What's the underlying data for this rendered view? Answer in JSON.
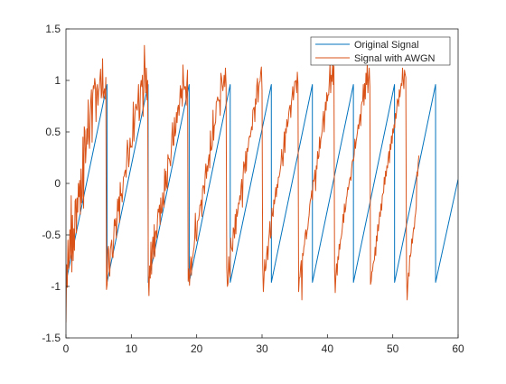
{
  "chart_data": {
    "type": "line",
    "title": "",
    "xlabel": "",
    "ylabel": "",
    "xlim": [
      0,
      60
    ],
    "ylim": [
      -1.5,
      1.5
    ],
    "x_ticks": [
      0,
      10,
      20,
      30,
      40,
      50,
      60
    ],
    "y_ticks": [
      -1.5,
      -1,
      -0.5,
      0,
      0.5,
      1,
      1.5
    ],
    "x_tick_labels": [
      "0",
      "10",
      "20",
      "30",
      "40",
      "50",
      "60"
    ],
    "y_tick_labels": [
      "-1.5",
      "-1",
      "-0.5",
      "0",
      "0.5",
      "1",
      "1.5"
    ],
    "grid": false,
    "legend_position": "top-right",
    "series": [
      {
        "name": "Original Signal",
        "color": "#0072BD",
        "x": [
          0,
          6.28,
          6.29,
          12.57,
          12.58,
          18.85,
          18.86,
          25.13,
          25.14,
          31.42,
          31.43,
          37.7,
          37.71,
          43.98,
          43.99,
          50.27,
          50.28,
          56.55,
          56.56,
          60
        ],
        "values": [
          -0.96,
          0.96,
          -0.96,
          0.96,
          -0.96,
          0.96,
          -0.96,
          0.96,
          -0.96,
          0.96,
          -0.96,
          0.96,
          -0.96,
          0.96,
          -0.96,
          0.96,
          -0.96,
          0.96,
          -0.96,
          0.04
        ]
      },
      {
        "name": "Signal with AWGN",
        "color": "#D95319",
        "x_start": 0,
        "x_step": 0.1,
        "values": [
          -1.35,
          -0.79,
          -1.01,
          -0.55,
          -0.83,
          -0.74,
          -0.45,
          -0.73,
          -0.12,
          -0.86,
          -0.31,
          -0.75,
          -0.44,
          -0.65,
          -0.17,
          -0.15,
          -0.48,
          -0.14,
          -0.28,
          0.0,
          -0.13,
          0.03,
          -0.3,
          0.14,
          -0.19,
          -0.12,
          0.45,
          -0.24,
          0.55,
          0.51,
          0.2,
          0.34,
          0.53,
          0.38,
          0.81,
          0.45,
          0.34,
          0.66,
          0.81,
          0.91,
          0.4,
          0.87,
          0.95,
          0.92,
          1.02,
          0.96,
          0.6,
          0.92,
          0.96,
          0.76,
          0.89,
          0.93,
          1.02,
          1.11,
          0.83,
          0.88,
          1.21,
          0.83,
          0.88,
          0.92,
          0.82,
          1.03,
          -1.03,
          -0.98,
          -0.65,
          -0.61,
          -0.81,
          -0.9,
          -0.64,
          -0.59,
          -0.55,
          -0.71,
          -0.72,
          -0.54,
          -0.35,
          -0.41,
          -0.34,
          -0.53,
          -0.37,
          -0.15,
          -0.27,
          -0.13,
          -0.38,
          0.01,
          -0.12,
          -0.1,
          -0.18,
          -0.07,
          0.06,
          0.07,
          0.11,
          0.13,
          0.06,
          0.24,
          0.42,
          0.33,
          0.16,
          0.24,
          0.44,
          0.35,
          0.36,
          0.35,
          0.45,
          0.79,
          0.41,
          0.59,
          0.72,
          0.77,
          0.73,
          0.71,
          0.8,
          0.96,
          0.61,
          0.66,
          0.94,
          1.0,
          0.94,
          1.05,
          0.65,
          0.91,
          1.34,
          1.11,
          0.88,
          1.12,
          0.81,
          1.0,
          -0.9,
          -1.09,
          -0.8,
          -0.92,
          -0.57,
          -0.88,
          -0.61,
          -0.52,
          -0.73,
          -0.4,
          -0.71,
          -0.47,
          -0.46,
          -0.53,
          -0.35,
          -0.25,
          -0.28,
          -0.21,
          -0.4,
          -0.14,
          -0.29,
          -0.27,
          -0.09,
          -0.2,
          -0.23,
          0.14,
          -0.07,
          0.12,
          -0.03,
          -0.05,
          0.28,
          0.24,
          0.24,
          0.21,
          0.17,
          0.3,
          0.46,
          0.59,
          0.37,
          0.37,
          0.64,
          0.46,
          0.5,
          0.69,
          0.59,
          0.73,
          0.76,
          0.66,
          0.79,
          0.95,
          0.83,
          0.92,
          0.75,
          1.15,
          0.98,
          0.91,
          0.94,
          0.94,
          0.76,
          0.98,
          1.1,
          -0.95,
          -0.83,
          -0.99,
          -0.84,
          -0.71,
          -0.89,
          -0.73,
          -0.72,
          -0.66,
          -0.62,
          -0.53,
          -0.29,
          -0.53,
          -0.56,
          -0.37,
          -0.36,
          -0.35,
          -0.3,
          -0.21,
          -0.21,
          -0.16,
          -0.32,
          -0.05,
          -0.02,
          -0.03,
          -0.1,
          0.09,
          0.19,
          0.05,
          0.17,
          0.12,
          0.23,
          0.28,
          0.15,
          0.51,
          0.32,
          0.33,
          0.37,
          0.71,
          0.42,
          0.56,
          0.57,
          0.6,
          0.79,
          0.8,
          0.84,
          0.81,
          0.8,
          0.81,
          0.66,
          1.07,
          1.03,
          0.96,
          0.9,
          0.96,
          1.05,
          0.94,
          1.12,
          0.96,
          -0.82,
          -1.0,
          -0.97,
          -0.71,
          -0.85,
          -0.91,
          -0.53,
          -0.62,
          -0.64,
          -0.66,
          -0.43,
          -0.45,
          -0.53,
          -0.3,
          -0.49,
          -0.25,
          -0.32,
          -0.27,
          -0.19,
          -0.2,
          -0.12,
          -0.16,
          -0.02,
          0.04,
          -0.23,
          0.07,
          0.21,
          0.18,
          0.1,
          0.31,
          0.12,
          0.34,
          0.31,
          0.36,
          0.44,
          0.46,
          0.45,
          0.5,
          0.55,
          0.52,
          0.71,
          0.73,
          0.74,
          0.6,
          0.82,
          0.77,
          0.95,
          1.02,
          0.79,
          0.93,
          0.98,
          0.99,
          1.08,
          1.13,
          0.9,
          -0.79,
          -1.05,
          -0.92,
          -0.74,
          -0.85,
          -0.82,
          -0.7,
          -0.61,
          -0.74,
          -0.57,
          -0.49,
          -0.37,
          -0.53,
          -0.5,
          -0.24,
          -0.31,
          -0.32,
          -0.16,
          -0.2,
          -0.13,
          -0.04,
          -0.13,
          -0.01,
          -0.04,
          0.06,
          0.06,
          0.09,
          0.14,
          0.19,
          0.33,
          0.25,
          0.17,
          0.33,
          0.5,
          0.3,
          0.53,
          0.49,
          0.62,
          0.55,
          0.6,
          0.69,
          0.74,
          0.76,
          0.64,
          0.79,
          0.85,
          0.94,
          0.81,
          0.89,
          0.99,
          0.99,
          1.0,
          0.88,
          1.08,
          0.97,
          -1.05,
          -0.92,
          -0.91,
          -0.81,
          -0.75,
          -1.13,
          -0.68,
          -0.7,
          -0.62,
          -0.59,
          -0.49,
          -0.45,
          -0.54,
          -0.46,
          -0.44,
          -0.36,
          -0.31,
          -0.21,
          -0.16,
          -0.14,
          -0.07,
          -0.16,
          0.03,
          0.02,
          0.05,
          0.13,
          -0.07,
          0.17,
          0.14,
          0.31,
          0.24,
          0.26,
          0.45,
          0.34,
          0.43,
          0.46,
          0.51,
          0.62,
          0.7,
          0.5,
          0.65,
          0.79,
          0.71,
          0.88,
          0.8,
          0.86,
          0.86,
          1.0,
          1.17,
          0.88,
          1.05,
          0.99,
          1.2,
          0.96,
          1.14,
          -0.84,
          -1.06,
          -0.89,
          -0.78,
          -0.89,
          -0.71,
          -0.74,
          -0.59,
          -0.64,
          -0.55,
          -0.53,
          -0.49,
          -0.42,
          -0.3,
          -0.38,
          -0.2,
          -0.28,
          -0.24,
          -0.15,
          -0.12,
          -0.04,
          -0.06,
          -0.01,
          0.04,
          0.06,
          0.03,
          0.14,
          0.21,
          0.23,
          0.22,
          0.28,
          0.43,
          0.34,
          0.41,
          0.45,
          0.5,
          0.57,
          0.53,
          0.61,
          0.67,
          0.56,
          0.76,
          0.79,
          0.8,
          0.96,
          0.76,
          0.97,
          0.82,
          1.07,
          0.96,
          1.16,
          0.88,
          1.01,
          1.12,
          0.94,
          -0.98,
          -0.95,
          -0.86,
          -0.85,
          -0.78,
          -0.76,
          -0.74,
          -0.62,
          -0.7,
          -0.51,
          -0.56,
          -0.4,
          -0.46,
          -0.38,
          -0.28,
          -0.32,
          -0.2,
          -0.26,
          -0.12,
          -0.1,
          -0.09,
          0.06,
          -0.01,
          0.12,
          0.07,
          0.17,
          0.15,
          0.24,
          0.31,
          0.2,
          0.38,
          0.33,
          0.46,
          0.39,
          0.53,
          0.49,
          0.57,
          0.54,
          0.68,
          0.63,
          0.71,
          0.82,
          0.8,
          0.75,
          0.91,
          0.84,
          0.92,
          0.97,
          0.95,
          1.12,
          1.0,
          0.92,
          1.1,
          1.06,
          1.03,
          -0.83,
          -1.13,
          -0.99,
          -0.87,
          -0.9,
          -0.7,
          -0.71,
          -0.67,
          -0.54,
          -0.58,
          -0.49,
          -0.43,
          -0.44,
          -0.33,
          -0.29,
          -0.22,
          0.11,
          0.07,
          0.2,
          0.27
        ]
      }
    ]
  }
}
